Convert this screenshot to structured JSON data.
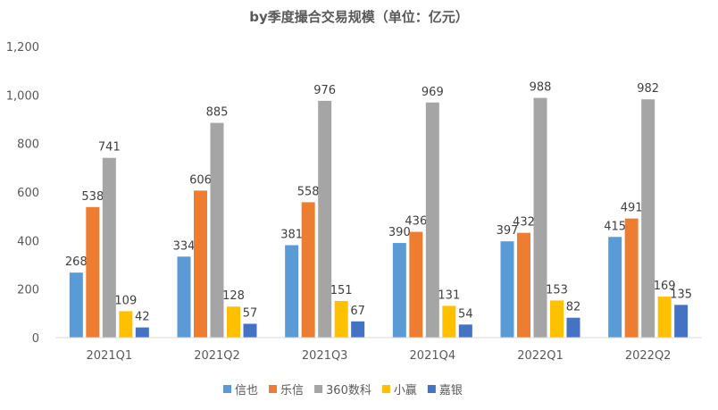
{
  "chart_data": {
    "type": "bar",
    "title": "by季度撮合交易规模（单位：亿元）",
    "xlabel": "",
    "ylabel": "",
    "ylim": [
      0,
      1200
    ],
    "yticks": [
      0,
      200,
      400,
      600,
      800,
      1000,
      1200
    ],
    "ytick_labels": [
      "0",
      "200",
      "400",
      "600",
      "800",
      "1,000",
      "1,200"
    ],
    "grid": false,
    "legend_position": "bottom",
    "categories": [
      "2021Q1",
      "2021Q2",
      "2021Q3",
      "2021Q4",
      "2022Q1",
      "2022Q2"
    ],
    "series": [
      {
        "name": "信也",
        "color": "#5B9BD5",
        "values": [
          268,
          334,
          381,
          390,
          397,
          415
        ]
      },
      {
        "name": "乐信",
        "color": "#ED7D31",
        "values": [
          538,
          606,
          558,
          436,
          432,
          491
        ]
      },
      {
        "name": "360数科",
        "color": "#A5A5A5",
        "values": [
          741,
          885,
          976,
          969,
          988,
          982
        ]
      },
      {
        "name": "小赢",
        "color": "#FFC000",
        "values": [
          109,
          128,
          151,
          131,
          153,
          169
        ]
      },
      {
        "name": "嘉银",
        "color": "#4472C4",
        "values": [
          42,
          57,
          67,
          54,
          82,
          135
        ]
      }
    ]
  }
}
